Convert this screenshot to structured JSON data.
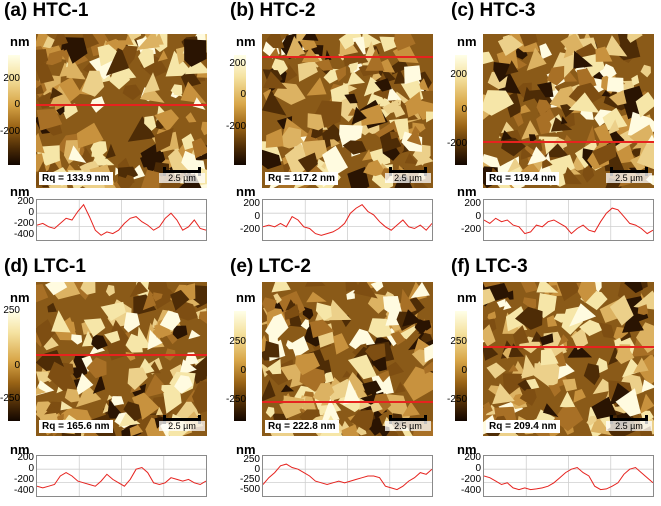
{
  "panels": [
    {
      "title": "(a) HTC-1",
      "unit": "nm",
      "cbar_labels": [
        "200",
        "0",
        "-200"
      ],
      "rq": "Rq = 133.9 nm",
      "scale": "2.5 µm",
      "profile_labels": [
        "200",
        "0",
        "-200",
        "-400"
      ],
      "profile": [
        0.35,
        0.4,
        0.3,
        0.25,
        0.4,
        0.55,
        0.5,
        0.75,
        0.95,
        0.6,
        0.2,
        0.05,
        0.15,
        0.1,
        0.2,
        0.4,
        0.55,
        0.6,
        0.45,
        0.35,
        0.2,
        0.3,
        0.55,
        0.7,
        0.5,
        0.2,
        0.3,
        0.5,
        0.25,
        0.2
      ]
    },
    {
      "title": "(b) HTC-2",
      "unit": "nm",
      "cbar_labels": [
        "200",
        "0",
        "-200"
      ],
      "rq": "Rq = 117.2 nm",
      "scale": "2.5 µm",
      "profile_labels": [
        "200",
        "0",
        "-200"
      ],
      "profile": [
        0.3,
        0.35,
        0.3,
        0.4,
        0.3,
        0.6,
        0.5,
        0.3,
        0.25,
        0.1,
        0.05,
        0.1,
        0.15,
        0.25,
        0.4,
        0.7,
        0.85,
        0.95,
        0.75,
        0.65,
        0.45,
        0.3,
        0.2,
        0.35,
        0.5,
        0.3,
        0.25,
        0.35,
        0.2,
        0.4
      ]
    },
    {
      "title": "(c) HTC-3",
      "unit": "nm",
      "cbar_labels": [
        "200",
        "0",
        "-200"
      ],
      "rq": "Rq = 119.4 nm",
      "scale": "2.5 µm",
      "profile_labels": [
        "200",
        "0",
        "-200"
      ],
      "profile": [
        0.5,
        0.4,
        0.55,
        0.45,
        0.5,
        0.35,
        0.3,
        0.1,
        0.15,
        0.35,
        0.3,
        0.45,
        0.5,
        0.4,
        0.3,
        0.1,
        0.25,
        0.35,
        0.2,
        0.15,
        0.45,
        0.7,
        0.85,
        0.8,
        0.6,
        0.4,
        0.35,
        0.25,
        0.1,
        0.2
      ]
    },
    {
      "title": "(d) LTC-1",
      "unit": "nm",
      "cbar_labels": [
        "250",
        "0",
        "-250"
      ],
      "rq": "Rq = 165.6 nm",
      "scale": "2.5 µm",
      "profile_labels": [
        "200",
        "0",
        "-200",
        "-400"
      ],
      "profile": [
        0.2,
        0.15,
        0.2,
        0.25,
        0.5,
        0.6,
        0.5,
        0.35,
        0.3,
        0.25,
        0.2,
        0.35,
        0.55,
        0.4,
        0.3,
        0.2,
        0.4,
        0.7,
        0.75,
        0.6,
        0.3,
        0.25,
        0.3,
        0.45,
        0.4,
        0.35,
        0.4,
        0.3,
        0.25,
        0.35
      ]
    },
    {
      "title": "(e) LTC-2",
      "unit": "nm",
      "cbar_labels": [
        "250",
        "0",
        "-250"
      ],
      "rq": "Rq = 222.8 nm",
      "scale": "2.5 µm",
      "profile_labels": [
        "250",
        "0",
        "-250",
        "-500"
      ],
      "profile": [
        0.25,
        0.45,
        0.6,
        0.8,
        0.85,
        0.75,
        0.7,
        0.6,
        0.5,
        0.35,
        0.3,
        0.25,
        0.3,
        0.35,
        0.3,
        0.35,
        0.4,
        0.45,
        0.5,
        0.5,
        0.45,
        0.2,
        0.15,
        0.1,
        0.2,
        0.35,
        0.45,
        0.6,
        0.55,
        0.7
      ]
    },
    {
      "title": "(f) LTC-3",
      "unit": "nm",
      "cbar_labels": [
        "250",
        "0",
        "-250"
      ],
      "rq": "Rq = 209.4 nm",
      "scale": "2.5 µm",
      "profile_labels": [
        "200",
        "0",
        "-200",
        "-400"
      ],
      "profile": [
        0.5,
        0.45,
        0.35,
        0.25,
        0.3,
        0.15,
        0.1,
        0.15,
        0.1,
        0.12,
        0.15,
        0.2,
        0.3,
        0.45,
        0.6,
        0.7,
        0.75,
        0.6,
        0.5,
        0.2,
        0.1,
        0.12,
        0.2,
        0.3,
        0.55,
        0.7,
        0.75,
        0.6,
        0.45,
        0.3
      ]
    }
  ]
}
